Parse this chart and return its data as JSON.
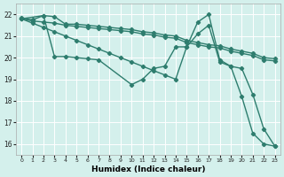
{
  "xlabel": "Humidex (Indice chaleur)",
  "bg_color": "#d4f0ec",
  "grid_color": "#ffffff",
  "line_color": "#2e7d6e",
  "xlim": [
    -0.5,
    23.5
  ],
  "ylim": [
    15.5,
    22.5
  ],
  "yticks": [
    16,
    17,
    18,
    19,
    20,
    21,
    22
  ],
  "xticks": [
    0,
    1,
    2,
    3,
    4,
    5,
    6,
    7,
    8,
    9,
    10,
    11,
    12,
    13,
    14,
    15,
    16,
    17,
    18,
    19,
    20,
    21,
    22,
    23
  ],
  "series": [
    {
      "x": [
        0,
        1,
        2,
        3,
        4,
        5,
        6,
        7,
        8,
        9,
        10,
        11,
        12,
        13,
        14,
        15,
        16,
        17,
        18,
        19,
        20,
        21,
        22,
        23
      ],
      "y": [
        21.85,
        21.75,
        21.95,
        21.9,
        21.55,
        21.55,
        21.5,
        21.45,
        21.4,
        21.35,
        21.3,
        21.2,
        21.15,
        21.05,
        21.0,
        20.8,
        20.7,
        20.6,
        20.55,
        20.4,
        20.3,
        20.2,
        20.0,
        19.95
      ]
    },
    {
      "x": [
        0,
        1,
        2,
        3,
        4,
        5,
        6,
        7,
        8,
        9,
        10,
        11,
        12,
        13,
        14,
        15,
        16,
        17,
        18,
        19,
        20,
        21,
        22,
        23
      ],
      "y": [
        21.8,
        21.7,
        21.65,
        21.6,
        21.5,
        21.45,
        21.4,
        21.35,
        21.3,
        21.25,
        21.2,
        21.1,
        21.05,
        20.95,
        20.9,
        20.7,
        20.6,
        20.5,
        20.45,
        20.3,
        20.2,
        20.1,
        19.9,
        19.85
      ]
    },
    {
      "x": [
        0,
        2,
        3,
        4,
        5,
        6,
        7,
        10,
        11,
        12,
        13,
        14,
        15,
        16,
        17,
        18,
        19,
        20,
        21,
        22,
        23
      ],
      "y": [
        21.8,
        21.95,
        20.05,
        20.05,
        20.0,
        19.95,
        19.9,
        18.75,
        19.0,
        19.5,
        19.6,
        20.5,
        20.5,
        21.65,
        22.0,
        19.9,
        19.6,
        19.5,
        18.3,
        16.7,
        15.9
      ]
    },
    {
      "x": [
        0,
        1,
        2,
        3,
        4,
        5,
        6,
        7,
        8,
        9,
        10,
        11,
        12,
        13,
        14,
        15,
        16,
        17,
        18,
        19,
        20,
        21,
        22,
        23
      ],
      "y": [
        21.8,
        21.6,
        21.4,
        21.2,
        21.0,
        20.8,
        20.6,
        20.4,
        20.2,
        20.0,
        19.8,
        19.6,
        19.4,
        19.2,
        19.0,
        20.5,
        21.1,
        21.5,
        19.8,
        19.6,
        18.2,
        16.5,
        16.0,
        15.9
      ]
    }
  ]
}
